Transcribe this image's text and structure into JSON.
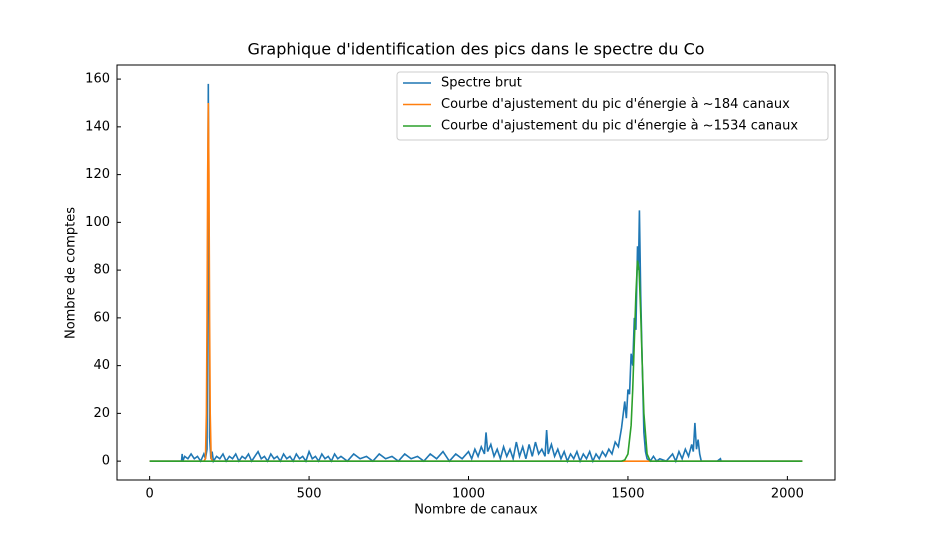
{
  "chart_data": {
    "type": "line",
    "title": "Graphique d'identification des pics dans le spectre du Co",
    "x_label": "Nombre de canaux",
    "y_label": "Nombre de comptes",
    "xlim": [
      -102.35,
      2149.35
    ],
    "ylim": [
      -7.9,
      165.9
    ],
    "xticks": [
      0,
      500,
      1000,
      1500,
      2000
    ],
    "yticks": [
      0,
      20,
      40,
      60,
      80,
      100,
      120,
      140,
      160
    ],
    "grid": false,
    "legend": "upper right",
    "series": [
      {
        "name": "Spectre brut",
        "color": "#1f77b4",
        "x": [
          0,
          100,
          102,
          104,
          110,
          120,
          130,
          140,
          150,
          160,
          170,
          175,
          180,
          184,
          188,
          192,
          196,
          200,
          210,
          220,
          230,
          240,
          250,
          260,
          270,
          280,
          290,
          300,
          310,
          320,
          330,
          340,
          350,
          360,
          370,
          380,
          390,
          400,
          410,
          420,
          430,
          440,
          450,
          460,
          470,
          480,
          490,
          500,
          510,
          520,
          530,
          540,
          550,
          560,
          570,
          580,
          590,
          600,
          620,
          640,
          660,
          680,
          700,
          720,
          740,
          760,
          780,
          800,
          820,
          840,
          860,
          880,
          900,
          920,
          940,
          960,
          980,
          1000,
          1010,
          1020,
          1030,
          1040,
          1050,
          1055,
          1060,
          1070,
          1080,
          1090,
          1100,
          1110,
          1120,
          1130,
          1140,
          1150,
          1160,
          1170,
          1180,
          1190,
          1200,
          1210,
          1220,
          1230,
          1240,
          1245,
          1250,
          1260,
          1270,
          1280,
          1290,
          1300,
          1310,
          1320,
          1330,
          1340,
          1350,
          1360,
          1370,
          1380,
          1390,
          1400,
          1410,
          1420,
          1430,
          1440,
          1450,
          1460,
          1470,
          1480,
          1490,
          1495,
          1500,
          1505,
          1510,
          1515,
          1520,
          1525,
          1530,
          1533,
          1536,
          1540,
          1545,
          1550,
          1555,
          1560,
          1570,
          1580,
          1590,
          1600,
          1620,
          1640,
          1650,
          1660,
          1670,
          1680,
          1690,
          1700,
          1705,
          1710,
          1715,
          1720,
          1725,
          1730,
          1780,
          1790,
          1792,
          2047
        ],
        "values": [
          0,
          0,
          3,
          0,
          2,
          1,
          3,
          1,
          2,
          0,
          3,
          1,
          5,
          158,
          10,
          1,
          4,
          0,
          2,
          1,
          3,
          0,
          2,
          1,
          3,
          0,
          2,
          1,
          3,
          0,
          2,
          4,
          1,
          2,
          0,
          3,
          1,
          2,
          0,
          3,
          1,
          2,
          0,
          3,
          1,
          2,
          0,
          4,
          1,
          2,
          0,
          3,
          1,
          2,
          0,
          3,
          1,
          2,
          0,
          3,
          1,
          2,
          0,
          3,
          1,
          2,
          0,
          3,
          1,
          2,
          0,
          3,
          1,
          4,
          0,
          3,
          1,
          4,
          1,
          5,
          2,
          6,
          3,
          12,
          4,
          7,
          2,
          5,
          1,
          6,
          2,
          5,
          1,
          8,
          2,
          6,
          1,
          7,
          2,
          8,
          3,
          5,
          2,
          13,
          3,
          7,
          2,
          5,
          1,
          4,
          0,
          3,
          1,
          4,
          0,
          3,
          1,
          4,
          0,
          3,
          1,
          4,
          2,
          5,
          3,
          8,
          6,
          14,
          25,
          18,
          30,
          28,
          45,
          40,
          60,
          55,
          90,
          80,
          105,
          70,
          40,
          12,
          4,
          1,
          0,
          2,
          0,
          1,
          0,
          3,
          0,
          4,
          1,
          5,
          2,
          7,
          4,
          16,
          5,
          9,
          3,
          0,
          0,
          1,
          0,
          0
        ]
      },
      {
        "name": "Courbe d'ajustement du pic d'énergie à ~184 canaux",
        "color": "#ff7f0e",
        "x": [
          0,
          170,
          175,
          178,
          180,
          182,
          184,
          186,
          188,
          190,
          193,
          198,
          2047
        ],
        "values": [
          0,
          0,
          1,
          20,
          60,
          120,
          150,
          120,
          60,
          20,
          1,
          0,
          0
        ]
      },
      {
        "name": "Courbe d'ajustement du pic d'énergie à ~1534 canaux",
        "color": "#2ca02c",
        "x": [
          0,
          1480,
          1490,
          1500,
          1510,
          1515,
          1520,
          1525,
          1530,
          1535,
          1540,
          1545,
          1550,
          1560,
          1570,
          2047
        ],
        "values": [
          0,
          0,
          0.5,
          3,
          15,
          30,
          50,
          70,
          84,
          80,
          62,
          40,
          20,
          3,
          0,
          0
        ]
      }
    ]
  }
}
